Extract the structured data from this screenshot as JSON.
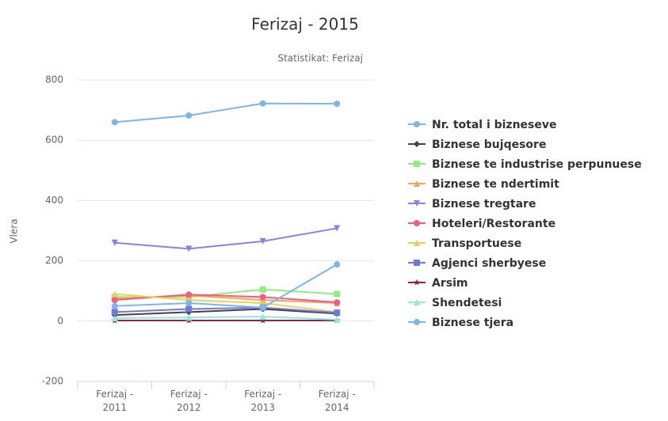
{
  "chart_data": {
    "type": "line",
    "title": "Ferizaj - 2015",
    "subtitle": "Statistikat: Ferizaj",
    "y_label": "Vlera",
    "categories": [
      "Ferizaj - 2011",
      "Ferizaj - 2012",
      "Ferizaj - 2013",
      "Ferizaj - 2014"
    ],
    "ylim": [
      -200,
      800
    ],
    "yticks": [
      -200,
      0,
      200,
      400,
      600,
      800
    ],
    "grid": true,
    "legend": "right",
    "series": [
      {
        "name": "Nr. total i bizneseve",
        "color": "#7cb5ec",
        "marker": "circle",
        "values": [
          660,
          682,
          722,
          721
        ]
      },
      {
        "name": "Biznese bujqesore",
        "color": "#434348",
        "marker": "diamond",
        "values": [
          20,
          30,
          40,
          25
        ]
      },
      {
        "name": "Biznese te industrise perpunuese",
        "color": "#90ed7d",
        "marker": "square",
        "values": [
          80,
          80,
          105,
          90
        ]
      },
      {
        "name": "Biznese te ndertimit",
        "color": "#f7a35c",
        "marker": "triangle",
        "values": [
          75,
          85,
          70,
          60
        ]
      },
      {
        "name": "Biznese tregtare",
        "color": "#8085e9",
        "marker": "triangle-down",
        "values": [
          260,
          240,
          265,
          308
        ]
      },
      {
        "name": "Hoteleri/Restorante",
        "color": "#f15c80",
        "marker": "circle",
        "values": [
          70,
          88,
          80,
          62
        ]
      },
      {
        "name": "Transportuese",
        "color": "#e4d354",
        "marker": "triangle",
        "values": [
          90,
          70,
          60,
          30
        ]
      },
      {
        "name": "Agjenci sherbyese",
        "color": "#7078d8",
        "marker": "square",
        "values": [
          30,
          40,
          45,
          28
        ]
      },
      {
        "name": "Arsim",
        "color": "#8b2a3a",
        "marker": "star",
        "values": [
          2,
          2,
          2,
          2
        ]
      },
      {
        "name": "Shendetesi",
        "color": "#91e8e1",
        "marker": "triangle",
        "values": [
          10,
          12,
          15,
          5
        ]
      },
      {
        "name": "Biznese tjera",
        "color": "#7cb5ec",
        "marker": "circle",
        "values": [
          50,
          60,
          45,
          188
        ]
      }
    ]
  }
}
